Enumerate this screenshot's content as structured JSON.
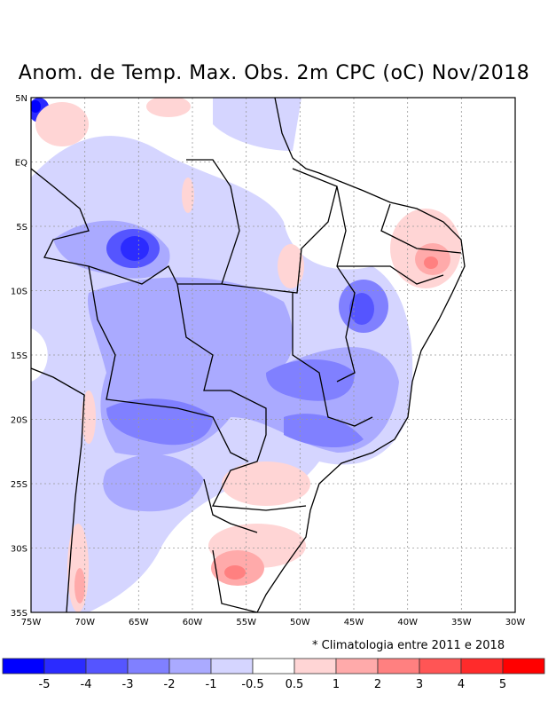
{
  "title": "Anom. de Temp. Max. Obs. 2m CPC (oC) Nov/2018",
  "note": "* Climatologia entre 2011 e 2018",
  "map": {
    "lon_range": [
      -75,
      -30
    ],
    "lat_range": [
      -35,
      5
    ],
    "lon_labels": [
      "75W",
      "70W",
      "65W",
      "60W",
      "55W",
      "50W",
      "45W",
      "40W",
      "35W",
      "30W"
    ],
    "lat_labels": [
      "5N",
      "EQ",
      "5S",
      "10S",
      "15S",
      "20S",
      "25S",
      "30S",
      "35S"
    ]
  },
  "colorbar": {
    "colors": [
      "#0000ff",
      "#2b2bff",
      "#5555ff",
      "#8080ff",
      "#aaaaff",
      "#d5d5ff",
      "#ffffff",
      "#ffd5d5",
      "#ffaaaa",
      "#ff8080",
      "#ff5555",
      "#ff2b2b",
      "#ff0000"
    ],
    "labels": [
      "-5",
      "-4",
      "-3",
      "-2",
      "-1",
      "-0.5",
      "0.5",
      "1",
      "2",
      "3",
      "4",
      "5"
    ]
  }
}
